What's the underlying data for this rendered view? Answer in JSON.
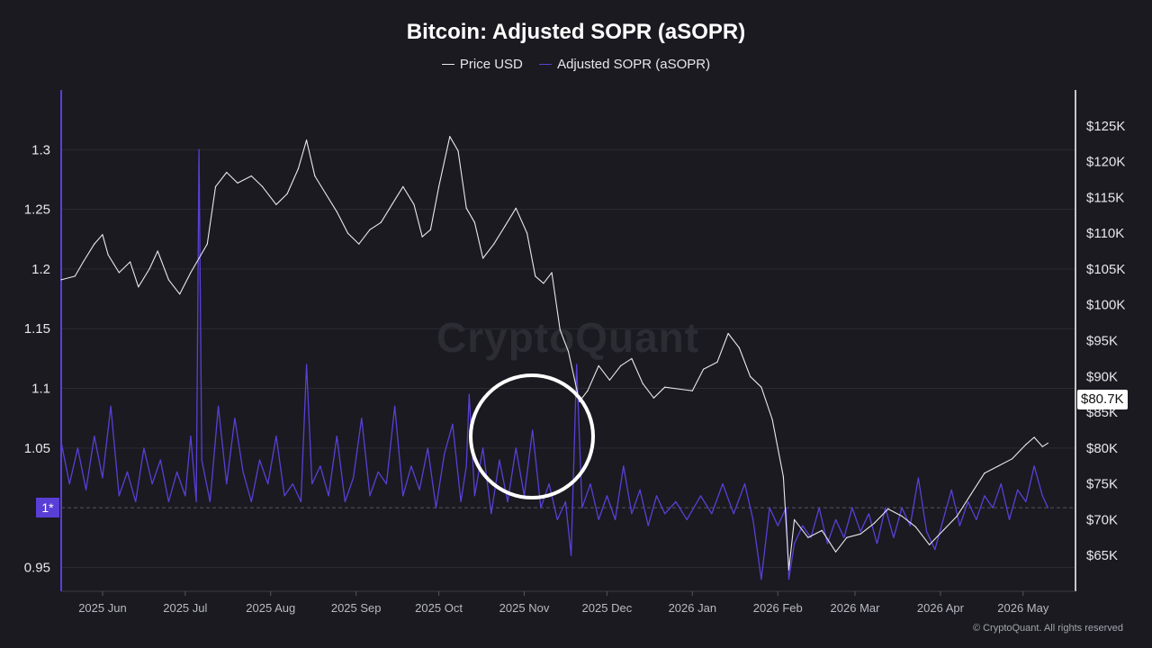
{
  "chart_data": {
    "type": "line",
    "title": "Bitcoin: Adjusted SOPR (aSOPR)",
    "legend_placement": "top-center",
    "grid": true,
    "x_tick_labels": [
      "2025 Jun",
      "2025 Jul",
      "2025 Aug",
      "2025 Sep",
      "2025 Oct",
      "2025 Nov",
      "2025 Dec",
      "2026 Jan",
      "2026 Feb",
      "2026 Mar",
      "2026 Apr",
      "2026 May"
    ],
    "y_left": {
      "range": [
        0.93,
        1.35
      ],
      "tick_labels": [
        "1.3",
        "1.25",
        "1.2",
        "1.15",
        "1.1",
        "1.05",
        "1*",
        "0.95"
      ],
      "tick_values": [
        1.3,
        1.25,
        1.2,
        1.15,
        1.1,
        1.05,
        1.0,
        0.95
      ]
    },
    "y_right": {
      "range": [
        60000,
        130000
      ],
      "tick_labels": [
        "$125K",
        "$120K",
        "$115K",
        "$110K",
        "$105K",
        "$100K",
        "$95K",
        "$90K",
        "$85K",
        "$80K",
        "$75K",
        "$70K",
        "$65K"
      ],
      "tick_values": [
        125000,
        120000,
        115000,
        110000,
        105000,
        100000,
        95000,
        90000,
        85000,
        80000,
        75000,
        70000,
        65000
      ]
    },
    "current_price_label": "$80.7K",
    "x_range": [
      "2025-05-17",
      "2026-05-20"
    ],
    "series": [
      {
        "name": "Price USD",
        "axis": "right",
        "color": "#e8e8ee",
        "points": [
          [
            "2025-05-17",
            103500
          ],
          [
            "2025-05-22",
            104000
          ],
          [
            "2025-05-25",
            106000
          ],
          [
            "2025-05-29",
            108500
          ],
          [
            "2025-06-01",
            109800
          ],
          [
            "2025-06-03",
            107000
          ],
          [
            "2025-06-07",
            104500
          ],
          [
            "2025-06-11",
            106000
          ],
          [
            "2025-06-14",
            102500
          ],
          [
            "2025-06-18",
            105000
          ],
          [
            "2025-06-21",
            107500
          ],
          [
            "2025-06-25",
            103500
          ],
          [
            "2025-06-29",
            101500
          ],
          [
            "2025-07-03",
            104500
          ],
          [
            "2025-07-06",
            106500
          ],
          [
            "2025-07-09",
            108500
          ],
          [
            "2025-07-12",
            116500
          ],
          [
            "2025-07-16",
            118500
          ],
          [
            "2025-07-20",
            117000
          ],
          [
            "2025-07-25",
            118000
          ],
          [
            "2025-07-29",
            116500
          ],
          [
            "2025-08-03",
            114000
          ],
          [
            "2025-08-07",
            115500
          ],
          [
            "2025-08-11",
            119000
          ],
          [
            "2025-08-14",
            123000
          ],
          [
            "2025-08-17",
            118000
          ],
          [
            "2025-08-21",
            115500
          ],
          [
            "2025-08-25",
            113000
          ],
          [
            "2025-08-29",
            110000
          ],
          [
            "2025-09-02",
            108500
          ],
          [
            "2025-09-06",
            110500
          ],
          [
            "2025-09-10",
            111500
          ],
          [
            "2025-09-14",
            114000
          ],
          [
            "2025-09-18",
            116500
          ],
          [
            "2025-09-22",
            114000
          ],
          [
            "2025-09-25",
            109500
          ],
          [
            "2025-09-28",
            110500
          ],
          [
            "2025-10-01",
            116500
          ],
          [
            "2025-10-05",
            123500
          ],
          [
            "2025-10-08",
            121500
          ],
          [
            "2025-10-11",
            113500
          ],
          [
            "2025-10-14",
            111500
          ],
          [
            "2025-10-17",
            106500
          ],
          [
            "2025-10-21",
            108500
          ],
          [
            "2025-10-25",
            111000
          ],
          [
            "2025-10-29",
            113500
          ],
          [
            "2025-11-02",
            110000
          ],
          [
            "2025-11-05",
            104000
          ],
          [
            "2025-11-08",
            103000
          ],
          [
            "2025-11-11",
            104500
          ],
          [
            "2025-11-14",
            96500
          ],
          [
            "2025-11-17",
            93500
          ],
          [
            "2025-11-21",
            86500
          ],
          [
            "2025-11-24",
            88000
          ],
          [
            "2025-11-28",
            91500
          ],
          [
            "2025-12-02",
            89500
          ],
          [
            "2025-12-06",
            91500
          ],
          [
            "2025-12-10",
            92500
          ],
          [
            "2025-12-14",
            89000
          ],
          [
            "2025-12-18",
            87000
          ],
          [
            "2025-12-22",
            88500
          ],
          [
            "2026-01-01",
            88000
          ],
          [
            "2026-01-05",
            91000
          ],
          [
            "2026-01-10",
            92000
          ],
          [
            "2026-01-14",
            96000
          ],
          [
            "2026-01-18",
            94000
          ],
          [
            "2026-01-22",
            90000
          ],
          [
            "2026-01-26",
            88500
          ],
          [
            "2026-01-30",
            84000
          ],
          [
            "2026-02-03",
            76000
          ],
          [
            "2026-02-05",
            63000
          ],
          [
            "2026-02-07",
            70000
          ],
          [
            "2026-02-12",
            67500
          ],
          [
            "2026-02-17",
            68500
          ],
          [
            "2026-02-22",
            65500
          ],
          [
            "2026-02-26",
            67500
          ],
          [
            "2026-03-03",
            68000
          ],
          [
            "2026-03-08",
            69500
          ],
          [
            "2026-03-13",
            71500
          ],
          [
            "2026-03-18",
            70500
          ],
          [
            "2026-03-23",
            69000
          ],
          [
            "2026-03-28",
            66500
          ],
          [
            "2026-04-02",
            68500
          ],
          [
            "2026-04-07",
            70500
          ],
          [
            "2026-04-12",
            73500
          ],
          [
            "2026-04-17",
            76500
          ],
          [
            "2026-04-22",
            77500
          ],
          [
            "2026-04-27",
            78500
          ],
          [
            "2026-05-02",
            80500
          ],
          [
            "2026-05-05",
            81500
          ],
          [
            "2026-05-08",
            80200
          ],
          [
            "2026-05-10",
            80700
          ]
        ]
      },
      {
        "name": "Adjusted SOPR (aSOPR)",
        "axis": "left",
        "color": "#5a3fd6",
        "points": [
          [
            "2025-05-17",
            1.055
          ],
          [
            "2025-05-20",
            1.02
          ],
          [
            "2025-05-23",
            1.05
          ],
          [
            "2025-05-26",
            1.015
          ],
          [
            "2025-05-29",
            1.06
          ],
          [
            "2025-06-01",
            1.025
          ],
          [
            "2025-06-04",
            1.085
          ],
          [
            "2025-06-07",
            1.01
          ],
          [
            "2025-06-10",
            1.03
          ],
          [
            "2025-06-13",
            1.005
          ],
          [
            "2025-06-16",
            1.05
          ],
          [
            "2025-06-19",
            1.02
          ],
          [
            "2025-06-22",
            1.04
          ],
          [
            "2025-06-25",
            1.005
          ],
          [
            "2025-06-28",
            1.03
          ],
          [
            "2025-07-01",
            1.01
          ],
          [
            "2025-07-03",
            1.06
          ],
          [
            "2025-07-05",
            1.005
          ],
          [
            "2025-07-06",
            1.3
          ],
          [
            "2025-07-07",
            1.04
          ],
          [
            "2025-07-10",
            1.005
          ],
          [
            "2025-07-13",
            1.085
          ],
          [
            "2025-07-16",
            1.02
          ],
          [
            "2025-07-19",
            1.075
          ],
          [
            "2025-07-22",
            1.03
          ],
          [
            "2025-07-25",
            1.005
          ],
          [
            "2025-07-28",
            1.04
          ],
          [
            "2025-07-31",
            1.02
          ],
          [
            "2025-08-03",
            1.06
          ],
          [
            "2025-08-06",
            1.01
          ],
          [
            "2025-08-09",
            1.02
          ],
          [
            "2025-08-12",
            1.005
          ],
          [
            "2025-08-14",
            1.12
          ],
          [
            "2025-08-16",
            1.02
          ],
          [
            "2025-08-19",
            1.035
          ],
          [
            "2025-08-22",
            1.01
          ],
          [
            "2025-08-25",
            1.06
          ],
          [
            "2025-08-28",
            1.005
          ],
          [
            "2025-08-31",
            1.025
          ],
          [
            "2025-09-03",
            1.075
          ],
          [
            "2025-09-06",
            1.01
          ],
          [
            "2025-09-09",
            1.03
          ],
          [
            "2025-09-12",
            1.02
          ],
          [
            "2025-09-15",
            1.085
          ],
          [
            "2025-09-18",
            1.01
          ],
          [
            "2025-09-21",
            1.035
          ],
          [
            "2025-09-24",
            1.015
          ],
          [
            "2025-09-27",
            1.05
          ],
          [
            "2025-09-30",
            1.0
          ],
          [
            "2025-10-03",
            1.045
          ],
          [
            "2025-10-06",
            1.07
          ],
          [
            "2025-10-09",
            1.005
          ],
          [
            "2025-10-11",
            1.035
          ],
          [
            "2025-10-12",
            1.095
          ],
          [
            "2025-10-14",
            1.01
          ],
          [
            "2025-10-17",
            1.05
          ],
          [
            "2025-10-20",
            0.995
          ],
          [
            "2025-10-23",
            1.04
          ],
          [
            "2025-10-26",
            1.005
          ],
          [
            "2025-10-29",
            1.05
          ],
          [
            "2025-11-01",
            1.01
          ],
          [
            "2025-11-04",
            1.065
          ],
          [
            "2025-11-07",
            1.0
          ],
          [
            "2025-11-10",
            1.02
          ],
          [
            "2025-11-13",
            0.99
          ],
          [
            "2025-11-16",
            1.005
          ],
          [
            "2025-11-18",
            0.96
          ],
          [
            "2025-11-20",
            1.12
          ],
          [
            "2025-11-22",
            1.0
          ],
          [
            "2025-11-25",
            1.02
          ],
          [
            "2025-11-28",
            0.99
          ],
          [
            "2025-12-01",
            1.01
          ],
          [
            "2025-12-04",
            0.99
          ],
          [
            "2025-12-07",
            1.035
          ],
          [
            "2025-12-10",
            0.995
          ],
          [
            "2025-12-13",
            1.015
          ],
          [
            "2025-12-16",
            0.985
          ],
          [
            "2025-12-19",
            1.01
          ],
          [
            "2025-12-22",
            0.995
          ],
          [
            "2025-12-26",
            1.005
          ],
          [
            "2025-12-30",
            0.99
          ],
          [
            "2026-01-04",
            1.01
          ],
          [
            "2026-01-08",
            0.995
          ],
          [
            "2026-01-12",
            1.02
          ],
          [
            "2026-01-16",
            0.995
          ],
          [
            "2026-01-20",
            1.02
          ],
          [
            "2026-01-23",
            0.99
          ],
          [
            "2026-01-26",
            0.94
          ],
          [
            "2026-01-29",
            1.0
          ],
          [
            "2026-02-01",
            0.985
          ],
          [
            "2026-02-04",
            1.0
          ],
          [
            "2026-02-05",
            0.94
          ],
          [
            "2026-02-07",
            0.97
          ],
          [
            "2026-02-10",
            0.985
          ],
          [
            "2026-02-13",
            0.975
          ],
          [
            "2026-02-16",
            1.0
          ],
          [
            "2026-02-19",
            0.97
          ],
          [
            "2026-02-22",
            0.99
          ],
          [
            "2026-02-25",
            0.975
          ],
          [
            "2026-02-28",
            1.0
          ],
          [
            "2026-03-03",
            0.98
          ],
          [
            "2026-03-06",
            0.995
          ],
          [
            "2026-03-09",
            0.97
          ],
          [
            "2026-03-12",
            1.0
          ],
          [
            "2026-03-15",
            0.975
          ],
          [
            "2026-03-18",
            1.0
          ],
          [
            "2026-03-21",
            0.985
          ],
          [
            "2026-03-24",
            1.025
          ],
          [
            "2026-03-27",
            0.98
          ],
          [
            "2026-03-30",
            0.965
          ],
          [
            "2026-04-02",
            0.99
          ],
          [
            "2026-04-05",
            1.015
          ],
          [
            "2026-04-08",
            0.985
          ],
          [
            "2026-04-11",
            1.005
          ],
          [
            "2026-04-14",
            0.99
          ],
          [
            "2026-04-17",
            1.01
          ],
          [
            "2026-04-20",
            1.0
          ],
          [
            "2026-04-23",
            1.02
          ],
          [
            "2026-04-26",
            0.99
          ],
          [
            "2026-04-29",
            1.015
          ],
          [
            "2026-05-02",
            1.005
          ],
          [
            "2026-05-05",
            1.035
          ],
          [
            "2026-05-08",
            1.01
          ],
          [
            "2026-05-10",
            1.0
          ]
        ]
      }
    ]
  },
  "watermark": "CryptoQuant",
  "footer": {
    "copyright": "© CryptoQuant. All rights reserved"
  }
}
